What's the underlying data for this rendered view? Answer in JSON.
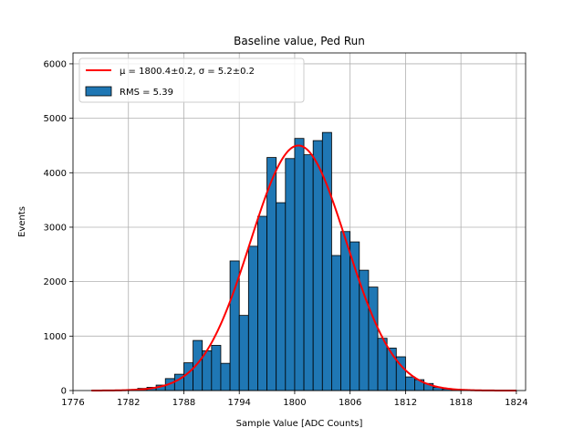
{
  "chart_data": {
    "type": "bar",
    "title": "Baseline value, Ped Run",
    "xlabel": "Sample Value [ADC Counts]",
    "ylabel": "Events",
    "xlim": [
      1776,
      1825
    ],
    "ylim": [
      0,
      6200
    ],
    "xticks": [
      1776,
      1782,
      1788,
      1794,
      1800,
      1806,
      1812,
      1818,
      1824
    ],
    "yticks": [
      0,
      1000,
      2000,
      3000,
      4000,
      5000,
      6000
    ],
    "grid": true,
    "legend": {
      "placement": "top-left",
      "entries": [
        "μ = 1800.4±0.2, σ = 5.2±0.2",
        "RMS = 5.39"
      ]
    },
    "histogram": {
      "name": "RMS = 5.39",
      "color": "#1f77b4",
      "bin_width": 1,
      "bins_start": [
        1782,
        1783,
        1784,
        1785,
        1786,
        1787,
        1788,
        1789,
        1790,
        1791,
        1792,
        1793,
        1794,
        1795,
        1796,
        1797,
        1798,
        1799,
        1800,
        1801,
        1802,
        1803,
        1804,
        1805,
        1806,
        1807,
        1808,
        1809,
        1810,
        1811,
        1812,
        1813,
        1814,
        1815,
        1816,
        1817
      ],
      "values": [
        20,
        40,
        60,
        100,
        220,
        300,
        510,
        920,
        730,
        830,
        500,
        2380,
        1380,
        2650,
        3200,
        4280,
        3450,
        4260,
        4630,
        4330,
        4590,
        4740,
        2480,
        2920,
        2730,
        2210,
        1900,
        960,
        780,
        620,
        250,
        200,
        130,
        60,
        30,
        15
      ]
    },
    "fit": {
      "name": "μ = 1800.4±0.2, σ = 5.2±0.2",
      "color": "#ff0000",
      "type": "gaussian",
      "mu": 1800.4,
      "sigma": 5.2,
      "amplitude": 4500,
      "x_range": [
        1778,
        1824
      ]
    }
  }
}
